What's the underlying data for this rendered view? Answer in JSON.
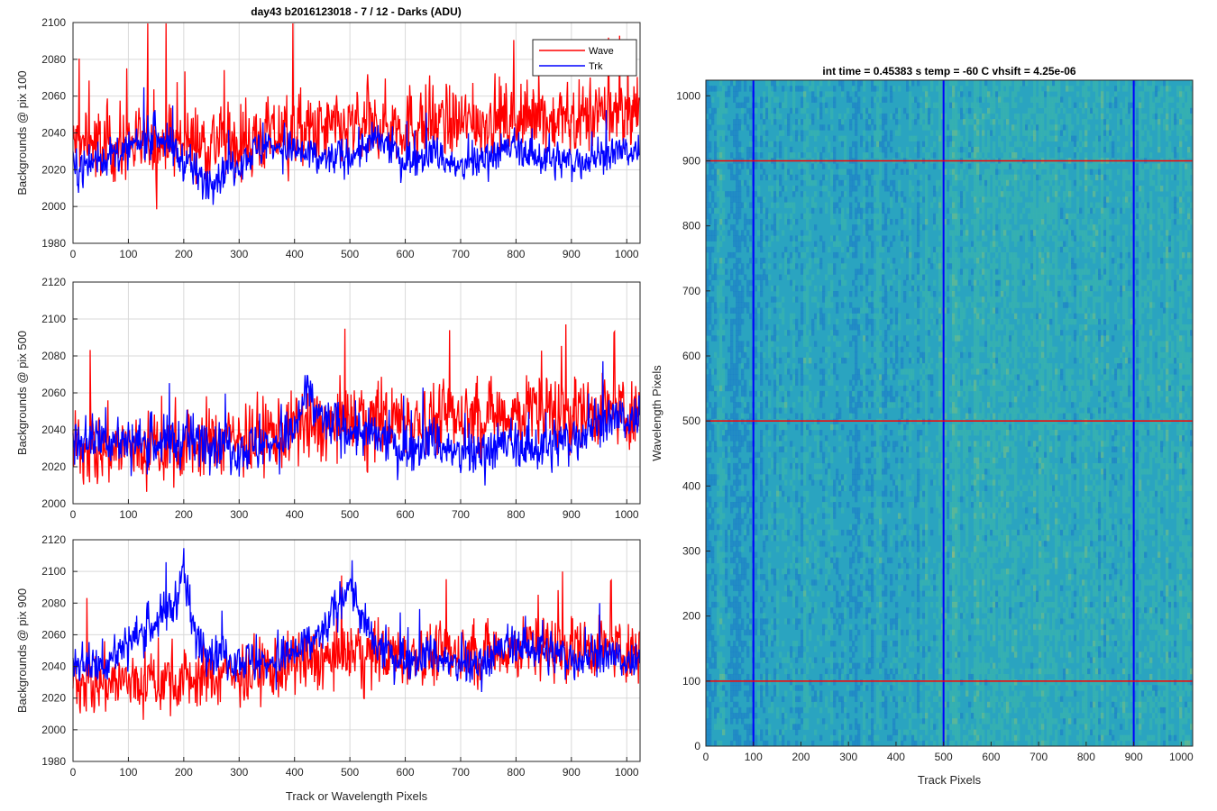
{
  "figure_title": "day43 b2016123018 - 7 / 12 - Darks (ADU)",
  "colors": {
    "wave": "#ff0000",
    "trk": "#0000ff",
    "grid": "#d9d9d9",
    "image_base": "#2aa4c0"
  },
  "chart_data": [
    {
      "type": "line",
      "title": "day43 b2016123018 - 7 / 12 - Darks (ADU)",
      "xlabel": "",
      "ylabel": "Backgrounds @ pix 100",
      "xlim": [
        0,
        1024
      ],
      "ylim": [
        1980,
        2100
      ],
      "xticks": [
        0,
        100,
        200,
        300,
        400,
        500,
        600,
        700,
        800,
        900,
        1000
      ],
      "yticks": [
        1980,
        2000,
        2020,
        2040,
        2060,
        2080,
        2100
      ],
      "grid": true,
      "legend_position": "top-right",
      "series": [
        {
          "name": "Wave",
          "color": "#ff0000",
          "x": [
            0,
            100,
            200,
            300,
            400,
            500,
            600,
            700,
            800,
            900,
            1024
          ],
          "y": [
            2034,
            2033,
            2035,
            2035,
            2040,
            2042,
            2045,
            2045,
            2048,
            2047,
            2052
          ]
        },
        {
          "name": "Trk",
          "color": "#0000ff",
          "x": [
            0,
            50,
            100,
            150,
            200,
            240,
            300,
            350,
            400,
            450,
            500,
            550,
            600,
            650,
            700,
            750,
            800,
            850,
            900,
            950,
            1024
          ],
          "y": [
            2020,
            2026,
            2030,
            2040,
            2025,
            2013,
            2025,
            2034,
            2030,
            2025,
            2028,
            2036,
            2025,
            2030,
            2020,
            2028,
            2032,
            2026,
            2024,
            2028,
            2030
          ]
        }
      ]
    },
    {
      "type": "line",
      "title": "",
      "xlabel": "",
      "ylabel": "Backgrounds @ pix 500",
      "xlim": [
        0,
        1024
      ],
      "ylim": [
        2000,
        2120
      ],
      "xticks": [
        0,
        100,
        200,
        300,
        400,
        500,
        600,
        700,
        800,
        900,
        1000
      ],
      "yticks": [
        2000,
        2020,
        2040,
        2060,
        2080,
        2100,
        2120
      ],
      "grid": true,
      "series": [
        {
          "name": "Wave",
          "color": "#ff0000",
          "x": [
            0,
            100,
            200,
            300,
            400,
            500,
            600,
            700,
            800,
            900,
            1024
          ],
          "y": [
            2030,
            2030,
            2032,
            2035,
            2040,
            2043,
            2046,
            2047,
            2050,
            2050,
            2050
          ]
        },
        {
          "name": "Trk",
          "color": "#0000ff",
          "x": [
            0,
            50,
            100,
            150,
            200,
            250,
            300,
            350,
            400,
            420,
            450,
            500,
            550,
            600,
            650,
            700,
            750,
            800,
            850,
            900,
            950,
            1024
          ],
          "y": [
            2035,
            2036,
            2033,
            2033,
            2034,
            2035,
            2030,
            2032,
            2038,
            2060,
            2045,
            2040,
            2035,
            2030,
            2035,
            2025,
            2030,
            2032,
            2030,
            2035,
            2045,
            2045
          ]
        }
      ]
    },
    {
      "type": "line",
      "title": "",
      "xlabel": "Track or Wavelength Pixels",
      "ylabel": "Backgrounds @ pix 900",
      "xlim": [
        0,
        1024
      ],
      "ylim": [
        1980,
        2120
      ],
      "xticks": [
        0,
        100,
        200,
        300,
        400,
        500,
        600,
        700,
        800,
        900,
        1000
      ],
      "yticks": [
        1980,
        2000,
        2020,
        2040,
        2060,
        2080,
        2100,
        2120
      ],
      "grid": true,
      "series": [
        {
          "name": "Wave",
          "color": "#ff0000",
          "x": [
            0,
            100,
            200,
            300,
            400,
            500,
            600,
            700,
            800,
            900,
            1024
          ],
          "y": [
            2030,
            2030,
            2032,
            2035,
            2042,
            2046,
            2048,
            2048,
            2052,
            2053,
            2050
          ]
        },
        {
          "name": "Trk",
          "color": "#0000ff",
          "x": [
            0,
            50,
            100,
            150,
            180,
            200,
            220,
            250,
            300,
            350,
            400,
            450,
            480,
            500,
            520,
            550,
            600,
            650,
            700,
            750,
            800,
            850,
            900,
            950,
            1024
          ],
          "y": [
            2045,
            2040,
            2055,
            2068,
            2078,
            2098,
            2060,
            2050,
            2045,
            2042,
            2048,
            2060,
            2080,
            2095,
            2070,
            2050,
            2045,
            2048,
            2038,
            2045,
            2055,
            2050,
            2045,
            2048,
            2040
          ]
        }
      ]
    },
    {
      "type": "heatmap",
      "title": "int time = 0.45383 s   temp = -60 C   vhsift = 4.25e-06",
      "xlabel": "Track Pixels",
      "ylabel": "Wavelength Pixels",
      "xlim": [
        0,
        1024
      ],
      "ylim": [
        0,
        1024
      ],
      "xticks": [
        0,
        100,
        200,
        300,
        400,
        500,
        600,
        700,
        800,
        900,
        1000
      ],
      "yticks": [
        0,
        100,
        200,
        300,
        400,
        500,
        600,
        700,
        800,
        900,
        1000
      ],
      "grid": false,
      "colormap": [
        "#1a78c8",
        "#2aa4c0",
        "#3cb8a8",
        "#7cc47c",
        "#c8c858"
      ],
      "vertical_lines": {
        "color": "#0000ff",
        "x": [
          100,
          500,
          900
        ]
      },
      "horizontal_lines": {
        "color": "#ff0000",
        "y": [
          100,
          500,
          900
        ]
      }
    }
  ]
}
